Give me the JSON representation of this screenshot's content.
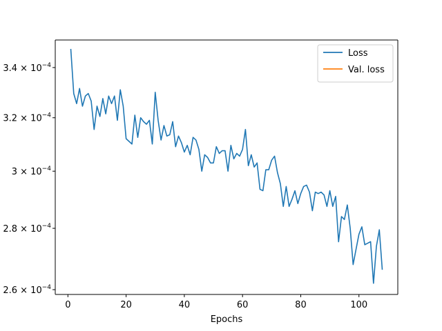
{
  "chart_data": {
    "type": "line",
    "title": "",
    "xlabel": "Epochs",
    "ylabel": "",
    "xlim": [
      -4.35,
      113.35
    ],
    "ylim": [
      0.0002585,
      0.0003515
    ],
    "y_scale": "log",
    "grid": false,
    "legend_position": "top-right",
    "x_ticks": [
      0,
      20,
      40,
      60,
      80,
      100
    ],
    "y_ticks": [
      {
        "value": 0.00026,
        "mantissa": "2.6",
        "base": "× 10",
        "exponent": "−4"
      },
      {
        "value": 0.00028,
        "mantissa": "2.8",
        "base": "× 10",
        "exponent": "−4"
      },
      {
        "value": 0.0003,
        "mantissa": "3",
        "base": "× 10",
        "exponent": "−4"
      },
      {
        "value": 0.00032,
        "mantissa": "3.2",
        "base": "× 10",
        "exponent": "−4"
      },
      {
        "value": 0.00034,
        "mantissa": "3.4",
        "base": "× 10",
        "exponent": "−4"
      }
    ],
    "series": [
      {
        "name": "Loss",
        "color": "#1f77b4",
        "x": [
          1,
          2,
          3,
          4,
          5,
          6,
          7,
          8,
          9,
          10,
          11,
          12,
          13,
          14,
          15,
          16,
          17,
          18,
          19,
          20,
          21,
          22,
          23,
          24,
          25,
          26,
          27,
          28,
          29,
          30,
          31,
          32,
          33,
          34,
          35,
          36,
          37,
          38,
          39,
          40,
          41,
          42,
          43,
          44,
          45,
          46,
          47,
          48,
          49,
          50,
          51,
          52,
          53,
          54,
          55,
          56,
          57,
          58,
          59,
          60,
          61,
          62,
          63,
          64,
          65,
          66,
          67,
          68,
          69,
          70,
          71,
          72,
          73,
          74,
          75,
          76,
          77,
          78,
          79,
          80,
          81,
          82,
          83,
          84,
          85,
          86,
          87,
          88,
          89,
          90,
          91,
          92,
          93,
          94,
          95,
          96,
          97,
          98,
          99,
          100,
          101,
          102,
          103,
          104,
          105,
          106,
          107,
          108
        ],
        "y": [
          0.0003475,
          0.0003295,
          0.0003255,
          0.0003315,
          0.0003245,
          0.0003285,
          0.0003295,
          0.0003265,
          0.0003155,
          0.0003245,
          0.0003205,
          0.0003275,
          0.0003215,
          0.0003285,
          0.0003255,
          0.0003285,
          0.000319,
          0.000331,
          0.0003245,
          0.000312,
          0.000311,
          0.00031,
          0.000321,
          0.0003125,
          0.00032,
          0.0003185,
          0.0003175,
          0.000319,
          0.00031,
          0.00033,
          0.000319,
          0.0003115,
          0.000317,
          0.000313,
          0.0003135,
          0.0003185,
          0.000309,
          0.000313,
          0.0003105,
          0.000307,
          0.0003095,
          0.000306,
          0.0003125,
          0.0003115,
          0.000308,
          0.0003,
          0.000306,
          0.000305,
          0.000303,
          0.000303,
          0.000309,
          0.0003065,
          0.0003075,
          0.0003075,
          0.0003,
          0.0003095,
          0.0003045,
          0.0003065,
          0.0003055,
          0.000308,
          0.0003155,
          0.000302,
          0.000306,
          0.0003015,
          0.000303,
          0.0002935,
          0.000293,
          0.0003005,
          0.0003005,
          0.000304,
          0.0003055,
          0.0002995,
          0.0002955,
          0.0002875,
          0.0002945,
          0.0002875,
          0.00029,
          0.000293,
          0.0002885,
          0.000292,
          0.0002945,
          0.000295,
          0.0002925,
          0.000286,
          0.0002925,
          0.000292,
          0.0002925,
          0.0002915,
          0.0002875,
          0.000293,
          0.0002875,
          0.000291,
          0.0002755,
          0.000284,
          0.000283,
          0.000288,
          0.00028,
          0.000268,
          0.000273,
          0.000278,
          0.0002805,
          0.0002745,
          0.000275,
          0.0002755,
          0.000262,
          0.000274,
          0.0002795,
          0.0002665
        ]
      },
      {
        "name": "Val. loss",
        "color": "#ff7f0e",
        "x": [],
        "y": []
      }
    ]
  }
}
